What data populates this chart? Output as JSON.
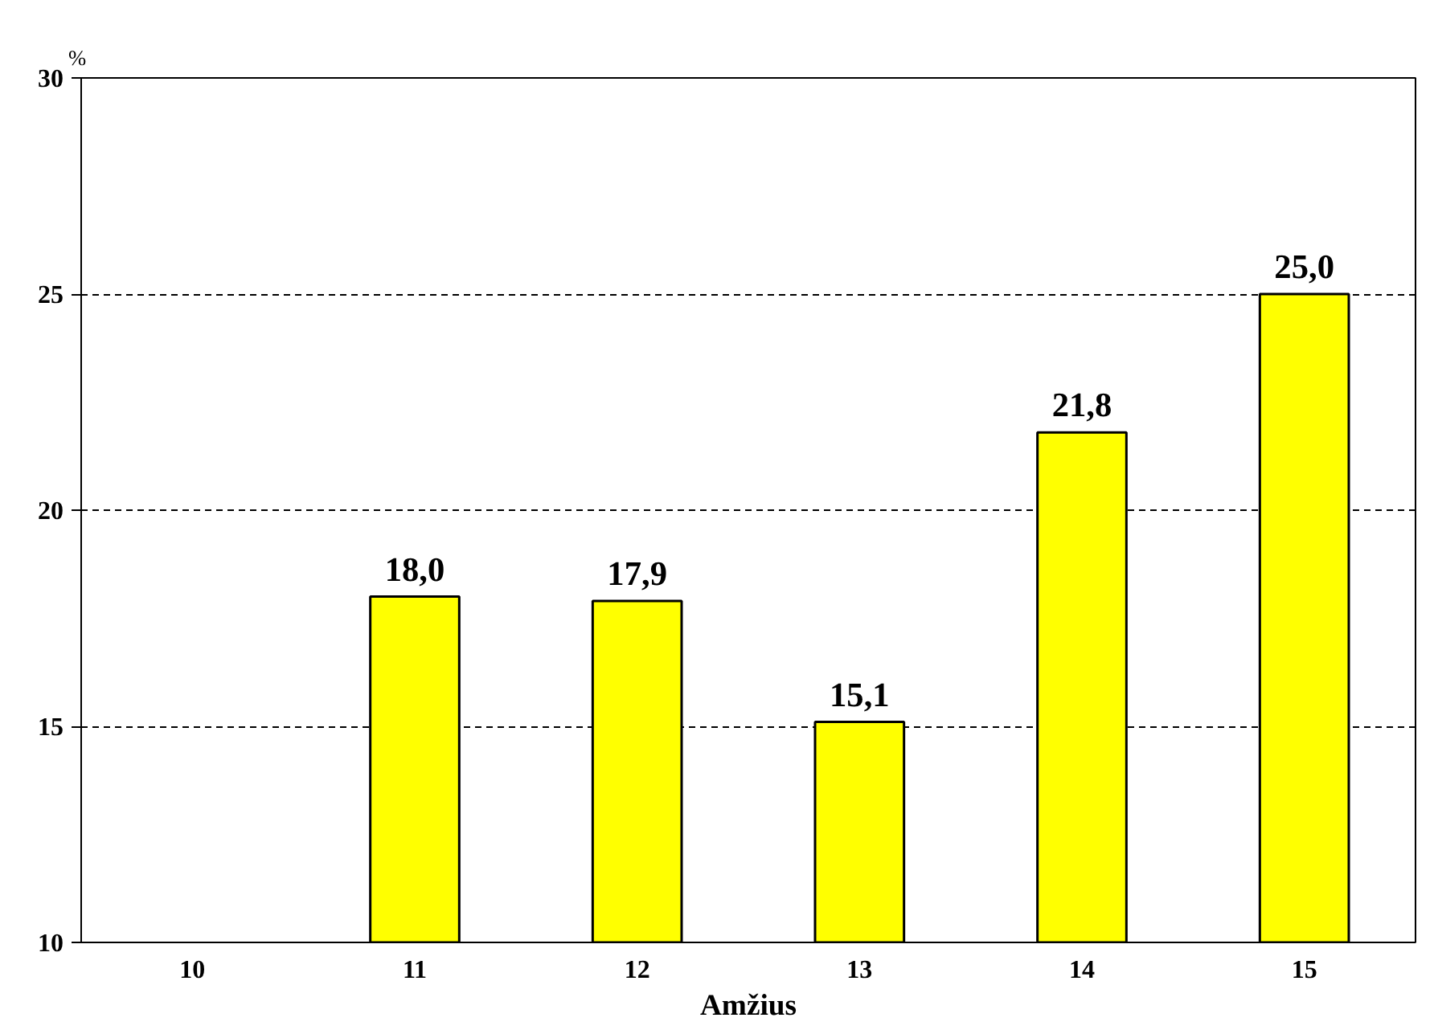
{
  "chart_data": {
    "type": "bar",
    "xlabel": "Amžius",
    "ylabel": "%",
    "categories": [
      "10",
      "11",
      "12",
      "13",
      "14",
      "15"
    ],
    "values": [
      null,
      18.0,
      17.9,
      15.1,
      21.8,
      25.0
    ],
    "value_labels": [
      null,
      "18,0",
      "17,9",
      "15,1",
      "21,8",
      "25,0"
    ],
    "color": "#ffff00",
    "ylim": [
      10,
      30
    ],
    "yticks": [
      10,
      15,
      20,
      25,
      30
    ],
    "grid": "y",
    "line_style": "dashed"
  }
}
